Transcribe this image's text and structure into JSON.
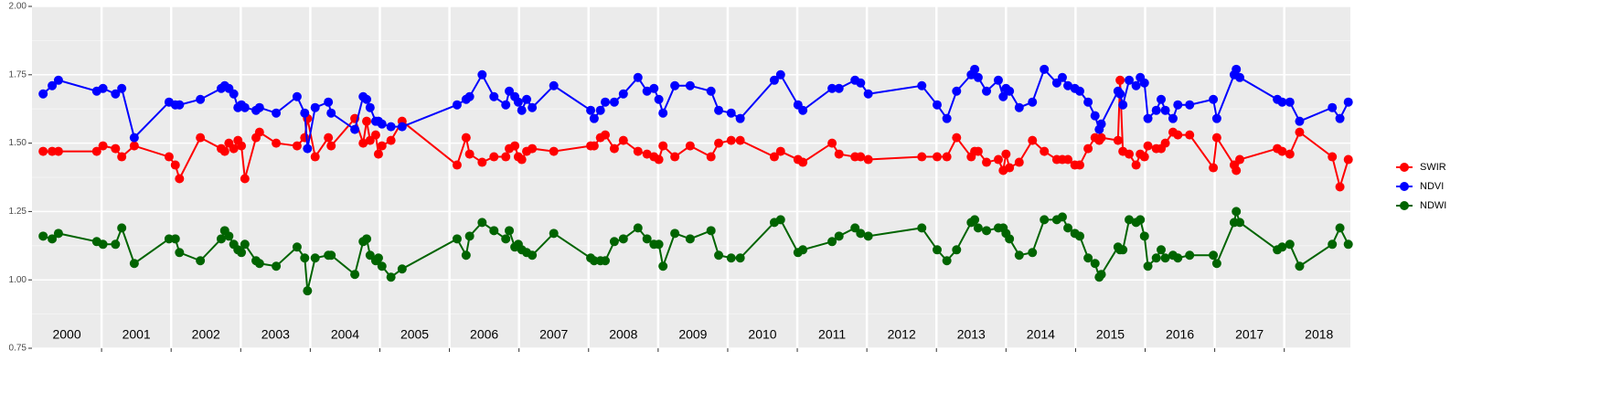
{
  "chart_data": {
    "type": "line",
    "legend": "right",
    "grid": true,
    "x": [
      2000.16,
      2000.29,
      2000.38,
      2000.93,
      2001.02,
      2001.2,
      2001.29,
      2001.47,
      2001.97,
      2002.06,
      2002.12,
      2002.42,
      2002.72,
      2002.77,
      2002.83,
      2002.9,
      2002.96,
      2003.01,
      2003.06,
      2003.22,
      2003.27,
      2003.51,
      2003.81,
      2003.92,
      2003.96,
      2004.07,
      2004.26,
      2004.3,
      2004.64,
      2004.76,
      2004.81,
      2004.86,
      2004.94,
      2004.98,
      2005.03,
      2005.16,
      2005.32,
      2006.11,
      2006.24,
      2006.29,
      2006.47,
      2006.64,
      2006.81,
      2006.86,
      2006.94,
      2006.99,
      2007.04,
      2007.11,
      2007.19,
      2007.5,
      2008.03,
      2008.08,
      2008.17,
      2008.24,
      2008.37,
      2008.5,
      2008.71,
      2008.84,
      2008.94,
      2009.01,
      2009.07,
      2009.24,
      2009.46,
      2009.76,
      2009.87,
      2010.05,
      2010.18,
      2010.67,
      2010.76,
      2011.01,
      2011.08,
      2011.5,
      2011.6,
      2011.83,
      2011.91,
      2012.02,
      2012.79,
      2013.01,
      2013.15,
      2013.29,
      2013.5,
      2013.55,
      2013.6,
      2013.72,
      2013.89,
      2013.96,
      2014,
      2014.05,
      2014.19,
      2014.38,
      2014.55,
      2014.73,
      2014.81,
      2014.89,
      2014.99,
      2015.06,
      2015.18,
      2015.28,
      2015.34,
      2015.37,
      2015.61,
      2015.64,
      2015.68,
      2015.77,
      2015.87,
      2015.93,
      2015.99,
      2016.04,
      2016.16,
      2016.23,
      2016.29,
      2016.4,
      2016.47,
      2016.64,
      2016.98,
      2017.03,
      2017.28,
      2017.31,
      2017.36,
      2017.9,
      2017.97,
      2018.08,
      2018.22,
      2018.69,
      2018.8,
      2018.92
    ],
    "series": [
      {
        "name": "SWIR",
        "color": "#ff0000",
        "values": [
          1.47,
          1.47,
          1.47,
          1.47,
          1.49,
          1.48,
          1.45,
          1.49,
          1.45,
          1.42,
          1.37,
          1.52,
          1.48,
          1.47,
          1.5,
          1.48,
          1.51,
          1.49,
          1.37,
          1.52,
          1.54,
          1.5,
          1.49,
          1.52,
          1.59,
          1.45,
          1.52,
          1.49,
          1.59,
          1.5,
          1.58,
          1.51,
          1.53,
          1.46,
          1.49,
          1.51,
          1.58,
          1.42,
          1.52,
          1.46,
          1.43,
          1.45,
          1.45,
          1.48,
          1.49,
          1.45,
          1.44,
          1.47,
          1.48,
          1.47,
          1.49,
          1.49,
          1.52,
          1.53,
          1.48,
          1.51,
          1.47,
          1.46,
          1.45,
          1.44,
          1.49,
          1.45,
          1.49,
          1.45,
          1.5,
          1.51,
          1.51,
          1.45,
          1.47,
          1.44,
          1.43,
          1.5,
          1.46,
          1.45,
          1.45,
          1.44,
          1.45,
          1.45,
          1.45,
          1.52,
          1.45,
          1.47,
          1.47,
          1.43,
          1.44,
          1.4,
          1.46,
          1.41,
          1.43,
          1.51,
          1.47,
          1.44,
          1.44,
          1.44,
          1.42,
          1.42,
          1.48,
          1.52,
          1.51,
          1.52,
          1.51,
          1.73,
          1.47,
          1.46,
          1.42,
          1.46,
          1.45,
          1.49,
          1.48,
          1.48,
          1.5,
          1.54,
          1.53,
          1.53,
          1.41,
          1.52,
          1.42,
          1.4,
          1.44,
          1.48,
          1.47,
          1.46,
          1.54,
          1.45,
          1.34,
          1.44
        ]
      },
      {
        "name": "NDVI",
        "color": "#0000ff",
        "values": [
          1.68,
          1.71,
          1.73,
          1.69,
          1.7,
          1.68,
          1.7,
          1.52,
          1.65,
          1.64,
          1.64,
          1.66,
          1.7,
          1.71,
          1.7,
          1.68,
          1.63,
          1.64,
          1.63,
          1.62,
          1.63,
          1.61,
          1.67,
          1.61,
          1.48,
          1.63,
          1.65,
          1.61,
          1.55,
          1.67,
          1.66,
          1.63,
          1.58,
          1.58,
          1.57,
          1.56,
          1.56,
          1.64,
          1.66,
          1.67,
          1.75,
          1.67,
          1.64,
          1.69,
          1.67,
          1.65,
          1.62,
          1.66,
          1.63,
          1.71,
          1.62,
          1.59,
          1.62,
          1.65,
          1.65,
          1.68,
          1.74,
          1.69,
          1.7,
          1.66,
          1.61,
          1.71,
          1.71,
          1.69,
          1.62,
          1.61,
          1.59,
          1.73,
          1.75,
          1.64,
          1.62,
          1.7,
          1.7,
          1.73,
          1.72,
          1.68,
          1.71,
          1.64,
          1.59,
          1.69,
          1.75,
          1.77,
          1.74,
          1.69,
          1.73,
          1.67,
          1.7,
          1.69,
          1.63,
          1.65,
          1.77,
          1.72,
          1.74,
          1.71,
          1.7,
          1.69,
          1.65,
          1.6,
          1.55,
          1.57,
          1.69,
          1.68,
          1.64,
          1.73,
          1.71,
          1.74,
          1.72,
          1.59,
          1.62,
          1.66,
          1.62,
          1.59,
          1.64,
          1.64,
          1.66,
          1.59,
          1.75,
          1.77,
          1.74,
          1.66,
          1.65,
          1.65,
          1.58,
          1.63,
          1.59,
          1.65
        ]
      },
      {
        "name": "NDWI",
        "color": "#006400",
        "values": [
          1.16,
          1.15,
          1.17,
          1.14,
          1.13,
          1.13,
          1.19,
          1.06,
          1.15,
          1.15,
          1.1,
          1.07,
          1.15,
          1.18,
          1.16,
          1.13,
          1.11,
          1.1,
          1.13,
          1.07,
          1.06,
          1.05,
          1.12,
          1.08,
          0.96,
          1.08,
          1.09,
          1.09,
          1.02,
          1.14,
          1.15,
          1.09,
          1.07,
          1.08,
          1.05,
          1.01,
          1.04,
          1.15,
          1.09,
          1.16,
          1.21,
          1.18,
          1.15,
          1.18,
          1.12,
          1.13,
          1.11,
          1.1,
          1.09,
          1.17,
          1.08,
          1.07,
          1.07,
          1.07,
          1.14,
          1.15,
          1.19,
          1.15,
          1.13,
          1.13,
          1.05,
          1.17,
          1.15,
          1.18,
          1.09,
          1.08,
          1.08,
          1.21,
          1.22,
          1.1,
          1.11,
          1.14,
          1.16,
          1.19,
          1.17,
          1.16,
          1.19,
          1.11,
          1.07,
          1.11,
          1.21,
          1.22,
          1.19,
          1.18,
          1.19,
          1.19,
          1.17,
          1.15,
          1.09,
          1.1,
          1.22,
          1.22,
          1.23,
          1.19,
          1.17,
          1.16,
          1.08,
          1.06,
          1.01,
          1.02,
          1.12,
          1.11,
          1.11,
          1.22,
          1.21,
          1.22,
          1.16,
          1.05,
          1.08,
          1.11,
          1.08,
          1.09,
          1.08,
          1.09,
          1.09,
          1.06,
          1.21,
          1.25,
          1.21,
          1.11,
          1.12,
          1.13,
          1.05,
          1.13,
          1.19,
          1.13
        ]
      }
    ],
    "xlim": [
      2000,
      2018.95
    ],
    "xticks": [
      {
        "value": 2000.5,
        "label": "2000"
      },
      {
        "value": 2001.5,
        "label": "2001"
      },
      {
        "value": 2002.5,
        "label": "2002"
      },
      {
        "value": 2003.5,
        "label": "2003"
      },
      {
        "value": 2004.5,
        "label": "2004"
      },
      {
        "value": 2005.5,
        "label": "2005"
      },
      {
        "value": 2006.5,
        "label": "2006"
      },
      {
        "value": 2007.5,
        "label": "2007"
      },
      {
        "value": 2008.5,
        "label": "2008"
      },
      {
        "value": 2009.5,
        "label": "2009"
      },
      {
        "value": 2010.5,
        "label": "2010"
      },
      {
        "value": 2011.5,
        "label": "2011"
      },
      {
        "value": 2012.5,
        "label": "2012"
      },
      {
        "value": 2013.5,
        "label": "2013"
      },
      {
        "value": 2014.5,
        "label": "2014"
      },
      {
        "value": 2015.5,
        "label": "2015"
      },
      {
        "value": 2016.5,
        "label": "2016"
      },
      {
        "value": 2017.5,
        "label": "2017"
      },
      {
        "value": 2018.5,
        "label": "2018"
      }
    ],
    "ylim": [
      0.75,
      2
    ],
    "yticks": [
      0.75,
      {
        "value": 1,
        "label": "1.00"
      },
      1.25,
      {
        "value": 1.5,
        "label": "1.50"
      },
      1.75,
      {
        "value": 2,
        "label": "2.00"
      }
    ]
  }
}
